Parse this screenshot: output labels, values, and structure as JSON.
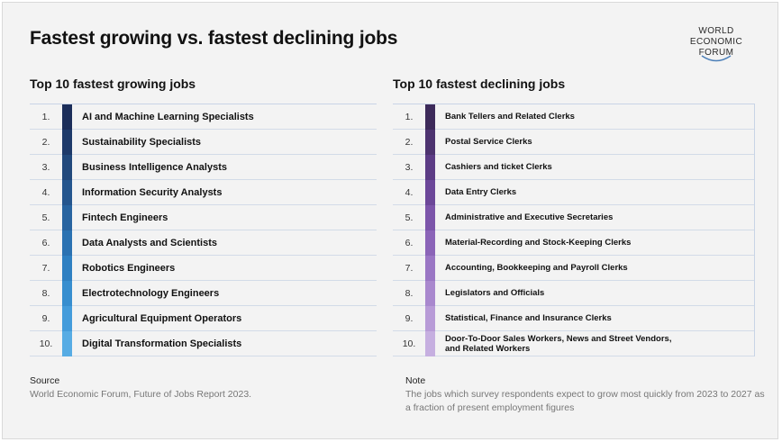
{
  "title": "Fastest growing vs. fastest declining jobs",
  "logo": {
    "line1": "WORLD",
    "line2": "ECONOMIC",
    "line3": "FORUM"
  },
  "growing": {
    "title": "Top 10 fastest growing jobs",
    "rows": [
      {
        "rank": "1.",
        "label": "AI and Machine Learning Specialists",
        "color": "#1c2e5a"
      },
      {
        "rank": "2.",
        "label": "Sustainability Specialists",
        "color": "#1e3a6a"
      },
      {
        "rank": "3.",
        "label": "Business Intelligence Analysts",
        "color": "#22497c"
      },
      {
        "rank": "4.",
        "label": "Information Security Analysts",
        "color": "#25568e"
      },
      {
        "rank": "5.",
        "label": "Fintech Engineers",
        "color": "#2864a0"
      },
      {
        "rank": "6.",
        "label": "Data Analysts and Scientists",
        "color": "#2b72b2"
      },
      {
        "rank": "7.",
        "label": "Robotics Engineers",
        "color": "#2f80c2"
      },
      {
        "rank": "8.",
        "label": "Electrotechnology Engineers",
        "color": "#378ecf"
      },
      {
        "rank": "9.",
        "label": "Agricultural Equipment Operators",
        "color": "#449cdb"
      },
      {
        "rank": "10.",
        "label": "Digital Transformation Specialists",
        "color": "#57ace4"
      }
    ]
  },
  "declining": {
    "title": "Top 10 fastest declining jobs",
    "rows": [
      {
        "rank": "1.",
        "label": "Bank Tellers and Related Clerks",
        "color": "#3d2a5a"
      },
      {
        "rank": "2.",
        "label": "Postal Service Clerks",
        "color": "#4d336f"
      },
      {
        "rank": "3.",
        "label": "Cashiers and ticket Clerks",
        "color": "#5c3c85"
      },
      {
        "rank": "4.",
        "label": "Data Entry Clerks",
        "color": "#6c4799"
      },
      {
        "rank": "5.",
        "label": "Administrative and Executive Secretaries",
        "color": "#7c55aa"
      },
      {
        "rank": "6.",
        "label": "Material-Recording and Stock-Keeping Clerks",
        "color": "#8b64b8"
      },
      {
        "rank": "7.",
        "label": "Accounting, Bookkeeping and Payroll Clerks",
        "color": "#9a76c4"
      },
      {
        "rank": "8.",
        "label": "Legislators and Officials",
        "color": "#a988ce"
      },
      {
        "rank": "9.",
        "label": "Statistical, Finance and Insurance Clerks",
        "color": "#b89bd7"
      },
      {
        "rank": "10.",
        "label": "Door-To-Door Sales Workers, News and Street Vendors, and Related Workers",
        "color": "#c6afe0"
      }
    ]
  },
  "source": {
    "heading": "Source",
    "text": "World Economic Forum, Future of Jobs Report 2023."
  },
  "note": {
    "heading": "Note",
    "text": "The jobs which survey respondents expect to grow most quickly from 2023 to 2027 as a fraction of present employment figures"
  }
}
